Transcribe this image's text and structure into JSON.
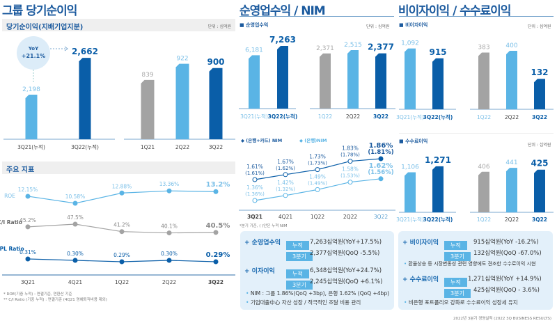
{
  "colors": {
    "title": "#1b5a9e",
    "light": "#5ab4e5",
    "dark": "#0a5ea8",
    "gray": "#a3a3a3",
    "box": "#e3f0fa"
  },
  "left": {
    "title": "그룹 당기순이익",
    "subtitle": "당기순이익(지배기업지분)",
    "unit": "단위 : 십억원",
    "yoy_label": "YoY",
    "yoy_value": "+21.1%",
    "kpi_title": "주요 지표",
    "notes": [
      "* ROE(기중 누적) : 연결기준, 연환산 기준",
      "** C/I Ratio (기중 누적) : 연결기준 (4Q21 명예퇴직비용 제외)"
    ]
  },
  "mid": {
    "title": "순영업수익 / NIM",
    "legend": "순영업수익",
    "unit": "단위 : 십억원",
    "nim_legend": [
      "(은행+카드) NIM",
      "(은행)NIM"
    ],
    "nim_note": "*분기 기준, ( )안은 누적 NIM"
  },
  "right": {
    "title": "비이자이익 / 수수료이익",
    "legend1": "비이자이익",
    "legend2": "수수료이익",
    "unit": "단위 : 십억원"
  },
  "boxes": {
    "left": {
      "h1": "+ 순영업수익",
      "h2": "+ 이자이익",
      "tag_cum": "누적",
      "tag_q": "3분기",
      "v1": "7,263십억원(YoY+17.5%)",
      "v2": "2,377십억원(QoQ  -5.5%)",
      "v3": "6,348십억원(YoY+24.7%)",
      "v4": "2,245십억원(QoQ +6.1%)",
      "b1": "NIM : 그룹 1.86%(QoQ +3bp), 은행 1.62% (QoQ +4bp)",
      "b2": "기업대출中心 자산 성장 / 적극적인 조달 비용 관리"
    },
    "right": {
      "h1": "+ 비이자이익",
      "h2": "+ 수수료이익",
      "tag_cum": "누적",
      "tag_q": "3분기",
      "v1": "915십억원(YoY -16.2%)",
      "v2": "132십억원(QoQ -67.0%)",
      "v3": "1,271십억원(YoY +14.9%)",
      "v4": "425십억원(QoQ -  3.6%)",
      "b1": "환율상승 등 시장변동성 관련 영향에도 견조한 수수료이익 시현",
      "b2": "비은행 포트폴리오 강화로 수수료이익 성장세 유지"
    }
  },
  "footer": "2022년 3분기 경영실적 (2022 3Q BUSINESS RESULTS)",
  "chart_data": [
    {
      "id": "ni_cum",
      "type": "bar",
      "categories": [
        "3Q21(누적)",
        "3Q22(누적)"
      ],
      "values": [
        2198,
        2662
      ],
      "labels": [
        "2,198",
        "2,662"
      ],
      "colors": [
        "light",
        "dark"
      ]
    },
    {
      "id": "ni_q",
      "type": "bar",
      "categories": [
        "1Q21",
        "2Q22",
        "3Q22"
      ],
      "values": [
        839,
        922,
        900
      ],
      "labels": [
        "839",
        "922",
        "900"
      ],
      "colors": [
        "gray",
        "light",
        "dark"
      ]
    },
    {
      "id": "kpi",
      "type": "line",
      "categories": [
        "3Q21",
        "4Q21",
        "1Q22",
        "2Q22",
        "3Q22"
      ],
      "series": [
        {
          "name": "ROE",
          "values": [
            12.15,
            10.58,
            12.88,
            13.36,
            13.2
          ],
          "labels": [
            "12.15%",
            "10.58%",
            "12.88%",
            "13.36%",
            "13.2%"
          ],
          "color": "light"
        },
        {
          "name": "C/I Ratio",
          "values": [
            45.2,
            47.5,
            41.2,
            40.1,
            40.5
          ],
          "labels": [
            "45.2%",
            "47.5%",
            "41.2%",
            "40.1%",
            "40.5%"
          ],
          "color": "gray"
        },
        {
          "name": "NPL Ratio",
          "values": [
            0.31,
            0.3,
            0.29,
            0.3,
            0.29
          ],
          "labels": [
            "0.31%",
            "0.30%",
            "0.29%",
            "0.30%",
            "0.29%"
          ],
          "color": "dark"
        }
      ]
    },
    {
      "id": "rev_cum",
      "type": "bar",
      "categories": [
        "3Q21(누적)",
        "3Q22(누적)"
      ],
      "values": [
        6181,
        7263
      ],
      "labels": [
        "6,181",
        "7,263"
      ],
      "colors": [
        "light",
        "dark"
      ]
    },
    {
      "id": "rev_q",
      "type": "bar",
      "categories": [
        "1Q22",
        "2Q22",
        "3Q22"
      ],
      "values": [
        2371,
        2515,
        2377
      ],
      "labels": [
        "2,371",
        "2,515",
        "2,377"
      ],
      "colors": [
        "gray",
        "light",
        "dark"
      ]
    },
    {
      "id": "nim",
      "type": "line",
      "categories": [
        "3Q21",
        "4Q21",
        "1Q22",
        "2Q22",
        "3Q22"
      ],
      "series": [
        {
          "name": "(은행+카드) NIM",
          "values": [
            1.61,
            1.67,
            1.73,
            1.83,
            1.86
          ],
          "labels": [
            "1.61%",
            "1.67%",
            "1.73%",
            "1.83%",
            "1.86%"
          ],
          "cumulative": [
            "(1.61%)",
            "(1.62%)",
            "(1.73%)",
            "(1.78%)",
            "(1.81%)"
          ],
          "color": "dark"
        },
        {
          "name": "(은행)NIM",
          "values": [
            1.36,
            1.42,
            1.49,
            1.58,
            1.62
          ],
          "labels": [
            "1.36%",
            "1.42%",
            "1.49%",
            "1.58%",
            "1.62%"
          ],
          "cumulative": [
            "(1.36%)",
            "(1.32%)",
            "(1.49%)",
            "(1.53%)",
            "(1.56%)"
          ],
          "color": "light"
        }
      ]
    },
    {
      "id": "nii_cum",
      "type": "bar",
      "categories": [
        "3Q21(누적)",
        "3Q22(누적)"
      ],
      "values": [
        1092,
        915
      ],
      "labels": [
        "1,092",
        "915"
      ],
      "colors": [
        "light",
        "dark"
      ]
    },
    {
      "id": "nii_q",
      "type": "bar",
      "categories": [
        "1Q22",
        "2Q22",
        "3Q22"
      ],
      "values": [
        383,
        400,
        132
      ],
      "labels": [
        "383",
        "400",
        "132"
      ],
      "colors": [
        "gray",
        "light",
        "dark"
      ]
    },
    {
      "id": "fee_cum",
      "type": "bar",
      "categories": [
        "3Q21(누적)",
        "3Q22(누적)"
      ],
      "values": [
        1106,
        1271
      ],
      "labels": [
        "1,106",
        "1,271"
      ],
      "colors": [
        "light",
        "dark"
      ]
    },
    {
      "id": "fee_q",
      "type": "bar",
      "categories": [
        "1Q22",
        "2Q22",
        "3Q22"
      ],
      "values": [
        406,
        441,
        425
      ],
      "labels": [
        "406",
        "441",
        "425"
      ],
      "colors": [
        "gray",
        "light",
        "dark"
      ]
    }
  ]
}
